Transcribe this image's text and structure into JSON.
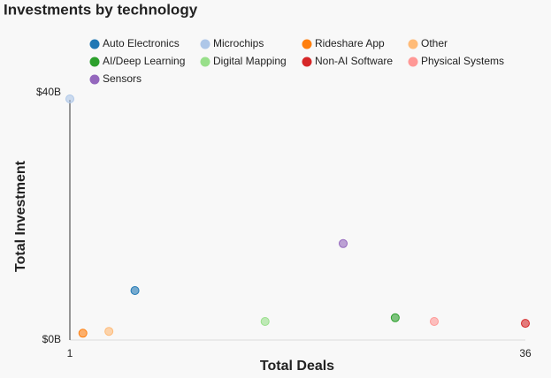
{
  "chart_data": {
    "type": "scatter",
    "title": "Investments by technology",
    "x_label": "Total Deals",
    "y_label": "Total Investment",
    "xlim": [
      1,
      36
    ],
    "xticks": [
      1,
      36
    ],
    "ylim": [
      0,
      40
    ],
    "yticks": [
      {
        "value": 0,
        "label": "$0B"
      },
      {
        "value": 40,
        "label": "$40B"
      }
    ],
    "series": [
      {
        "name": "Auto Electronics",
        "color": "#1f77b4",
        "x": [
          6
        ],
        "values": [
          8
        ]
      },
      {
        "name": "Microchips",
        "color": "#aec7e8",
        "x": [
          1
        ],
        "values": [
          39
        ]
      },
      {
        "name": "Rideshare App",
        "color": "#ff7f0e",
        "x": [
          2
        ],
        "values": [
          1.1
        ]
      },
      {
        "name": "Other",
        "color": "#ffbb78",
        "x": [
          4
        ],
        "values": [
          1.4
        ]
      },
      {
        "name": "AI/Deep Learning",
        "color": "#2ca02c",
        "x": [
          26
        ],
        "values": [
          3.6
        ]
      },
      {
        "name": "Digital Mapping",
        "color": "#98df8a",
        "x": [
          16
        ],
        "values": [
          3
        ]
      },
      {
        "name": "Non-AI Software",
        "color": "#d62728",
        "x": [
          36
        ],
        "values": [
          2.7
        ]
      },
      {
        "name": "Physical Systems",
        "color": "#ff9896",
        "x": [
          29
        ],
        "values": [
          3
        ]
      },
      {
        "name": "Sensors",
        "color": "#9467bd",
        "x": [
          22
        ],
        "values": [
          15.6
        ]
      }
    ]
  }
}
